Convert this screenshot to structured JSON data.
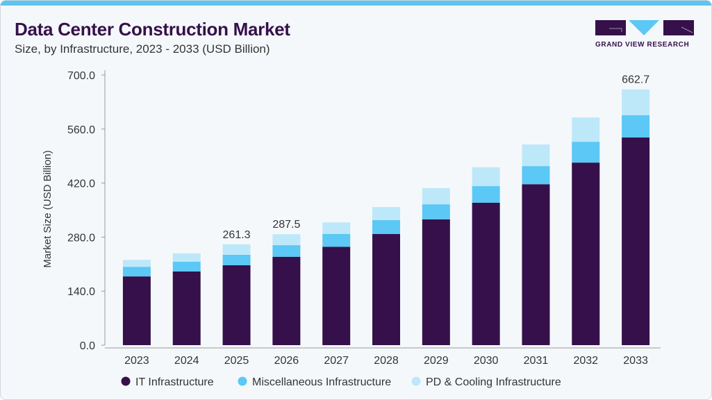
{
  "header": {
    "title": "Data Center Construction Market",
    "subtitle": "Size, by Infrastructure, 2023 - 2033 (USD Billion)",
    "logo_text": "GRAND VIEW RESEARCH"
  },
  "colors": {
    "it": "#35104a",
    "misc": "#5bc8f5",
    "pd": "#bde8f9"
  },
  "chart_data": {
    "type": "bar",
    "stacked": true,
    "title": "Data Center Construction Market",
    "subtitle": "Size, by Infrastructure, 2023 - 2033 (USD Billion)",
    "xlabel": "",
    "ylabel": "Market Size (USD Billion)",
    "ylim": [
      0,
      700
    ],
    "yticks": [
      "0.0",
      "140.0",
      "280.0",
      "420.0",
      "560.0",
      "700.0"
    ],
    "categories": [
      "2023",
      "2024",
      "2025",
      "2026",
      "2027",
      "2028",
      "2029",
      "2030",
      "2031",
      "2032",
      "2033"
    ],
    "series": [
      {
        "name": "IT Infrastructure",
        "values": [
          178,
          191,
          207,
          229,
          255,
          288,
          326,
          369,
          417,
          473,
          538
        ]
      },
      {
        "name": "Miscellaneous Infrastructure",
        "values": [
          25,
          25,
          27,
          30,
          33,
          36,
          39,
          43,
          47,
          54,
          58
        ]
      },
      {
        "name": "PD & Cooling Infrastructure",
        "values": [
          18,
          22,
          27.3,
          28.5,
          30,
          34,
          42,
          49,
          56,
          63,
          66.7
        ]
      }
    ],
    "data_labels": [
      {
        "category": "2025",
        "text": "261.3"
      },
      {
        "category": "2026",
        "text": "287.5"
      },
      {
        "category": "2033",
        "text": "662.7"
      }
    ],
    "legend": "bottom",
    "grid": false
  }
}
